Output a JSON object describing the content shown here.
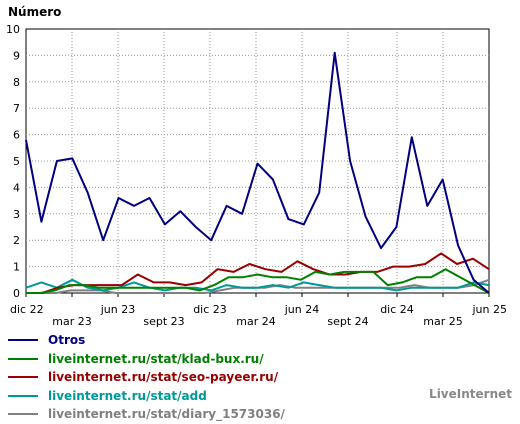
{
  "chart_data": {
    "type": "line",
    "ylabel": "Número",
    "ylim": [
      0,
      10
    ],
    "yticks": [
      "0",
      "1",
      "2",
      "3",
      "4",
      "5",
      "6",
      "7",
      "8",
      "9",
      "10"
    ],
    "xticks": [
      "dic 22",
      "mar 23",
      "jun 23",
      "sept 23",
      "dic 23",
      "mar 24",
      "jun 24",
      "sept 24",
      "dic 24",
      "mar 25",
      "jun 25"
    ],
    "n_points": 43,
    "grid": true,
    "series": [
      {
        "name": "Otros",
        "color": "#000080",
        "values": [
          5.8,
          2.7,
          5.0,
          5.1,
          3.8,
          2.0,
          3.6,
          3.3,
          3.6,
          2.6,
          3.1,
          2.5,
          2.0,
          3.3,
          3.0,
          4.9,
          4.3,
          2.8,
          2.6,
          3.8,
          9.1,
          5.0,
          2.9,
          1.7,
          2.5,
          5.9,
          3.3,
          4.3,
          1.8,
          0.5,
          0.0
        ]
      },
      {
        "name": "liveinternet.ru/stat/klad-bux.ru/",
        "color": "#008000",
        "values": [
          0.0,
          0.0,
          0.1,
          0.3,
          0.3,
          0.2,
          0.2,
          0.2,
          0.2,
          0.2,
          0.2,
          0.2,
          0.1,
          0.3,
          0.6,
          0.6,
          0.7,
          0.6,
          0.6,
          0.5,
          0.8,
          0.7,
          0.8,
          0.8,
          0.8,
          0.3,
          0.4,
          0.6,
          0.6,
          0.9,
          0.6,
          0.3,
          0.0
        ]
      },
      {
        "name": "liveinternet.ru/stat/seo-payeer.ru/",
        "color": "#990000",
        "values": [
          0.0,
          0.0,
          0.2,
          0.3,
          0.3,
          0.3,
          0.3,
          0.7,
          0.4,
          0.4,
          0.3,
          0.4,
          0.9,
          0.8,
          1.1,
          0.9,
          0.8,
          1.2,
          0.9,
          0.7,
          0.7,
          0.8,
          0.8,
          1.0,
          1.0,
          1.1,
          1.5,
          1.1,
          1.3,
          0.9
        ]
      },
      {
        "name": "liveinternet.ru/stat/add",
        "color": "#009999",
        "values": [
          0.2,
          0.4,
          0.2,
          0.5,
          0.2,
          0.1,
          0.2,
          0.4,
          0.2,
          0.1,
          0.2,
          0.2,
          0.1,
          0.3,
          0.2,
          0.2,
          0.3,
          0.2,
          0.4,
          0.3,
          0.2,
          0.2,
          0.2,
          0.2,
          0.1,
          0.2,
          0.2,
          0.2,
          0.2,
          0.4,
          0.3
        ]
      },
      {
        "name": "liveinternet.ru/stat/diary_1573036/",
        "color": "#808080",
        "values": [
          0.0,
          0.0,
          0.0,
          0.1,
          0.1,
          0.1,
          0.0,
          0.0,
          0.0,
          0.0,
          0.0,
          0.0,
          0.0,
          0.1,
          0.2,
          0.2,
          0.2,
          0.3,
          0.2,
          0.2,
          0.2,
          0.2,
          0.2,
          0.2,
          0.2,
          0.2,
          0.3,
          0.2,
          0.2,
          0.2,
          0.3,
          0.5
        ]
      }
    ]
  },
  "brand": "LiveInternet"
}
